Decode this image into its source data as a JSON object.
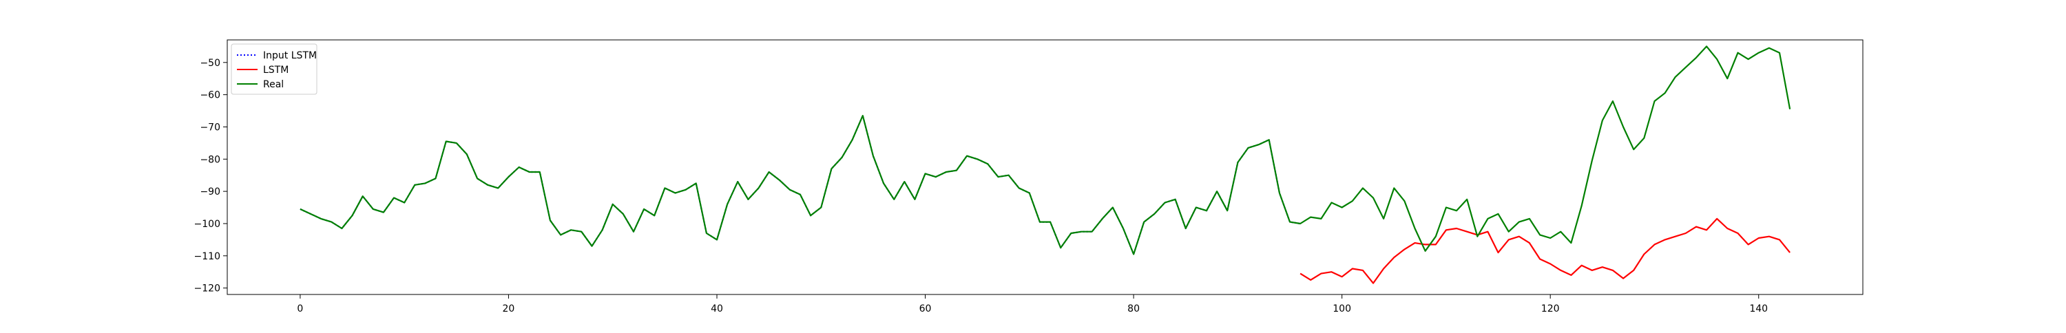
{
  "chart_data": {
    "type": "line",
    "title": "",
    "xlabel": "",
    "ylabel": "",
    "xlim": [
      -7,
      150
    ],
    "ylim": [
      -122,
      -43
    ],
    "grid": false,
    "legend_position": "top-left",
    "x_ticks": [
      0,
      20,
      40,
      60,
      80,
      100,
      120,
      140
    ],
    "x_tick_labels": [
      "0",
      "20",
      "40",
      "60",
      "80",
      "100",
      "120",
      "140"
    ],
    "y_ticks": [
      -120,
      -110,
      -100,
      -90,
      -80,
      -70,
      -60,
      -50
    ],
    "y_tick_labels": [
      "−120",
      "−110",
      "−100",
      "−90",
      "−80",
      "−70",
      "−60",
      "−50"
    ],
    "series": [
      {
        "name": "Input LSTM",
        "color": "#0000ff",
        "style": "dotted",
        "x_start": 0,
        "values": [
          -95.5,
          -97,
          -98.5,
          -99.5,
          -101.5,
          -97.5,
          -91.5,
          -95.5,
          -96.5,
          -92,
          -93.5,
          -88,
          -87.5,
          -86,
          -74.5,
          -75,
          -78.5,
          -86,
          -88,
          -89,
          -85.5,
          -82.5,
          -84,
          -84,
          -99,
          -103.5,
          -102,
          -102.5,
          -107,
          -102,
          -94,
          -97,
          -102.5,
          -95.5,
          -97.5,
          -89,
          -90.5,
          -89.5,
          -87.5,
          -103,
          -105,
          -94,
          -87,
          -92.5,
          -89,
          -84,
          -86.5,
          -89.5,
          -91,
          -97.5,
          -95,
          -83,
          -79.5,
          -74,
          -66.5,
          -79,
          -87.5,
          -92.5,
          -87,
          -92.5,
          -84.5,
          -85.5,
          -84,
          -83.5,
          -79,
          -80,
          -81.5,
          -85.5,
          -85,
          -89,
          -90.5,
          -99.5,
          -99.5,
          -107.5,
          -103,
          -102.5,
          -102.5,
          -98.5,
          -95,
          -101.5,
          -109.5,
          -99.5,
          -97,
          -93.5,
          -92.5,
          -101.5,
          -95,
          -96,
          -90,
          -96,
          -81,
          -76.5,
          -75.5,
          -74,
          -90.5,
          -99.5,
          -100
        ]
      },
      {
        "name": "LSTM",
        "color": "#ff0000",
        "style": "solid",
        "x_start": 96,
        "values": [
          -115.5,
          -117.5,
          -115.5,
          -115,
          -116.5,
          -114,
          -114.5,
          -118.5,
          -114,
          -110.5,
          -108,
          -106,
          -106.5,
          -106.5,
          -102,
          -101.5,
          -102.5,
          -103.5,
          -102.5,
          -109,
          -105,
          -104,
          -106,
          -111,
          -112.5,
          -114.5,
          -116,
          -113,
          -114.5,
          -113.5,
          -114.5,
          -117,
          -114.5,
          -109.5,
          -106.5,
          -105,
          -104,
          -103,
          -101,
          -102,
          -98.5,
          -101.5,
          -103,
          -106.5,
          -104.5,
          -104,
          -105,
          -109
        ]
      },
      {
        "name": "Real",
        "color": "#008000",
        "style": "solid",
        "x_start": 0,
        "values": [
          -95.5,
          -97,
          -98.5,
          -99.5,
          -101.5,
          -97.5,
          -91.5,
          -95.5,
          -96.5,
          -92,
          -93.5,
          -88,
          -87.5,
          -86,
          -74.5,
          -75,
          -78.5,
          -86,
          -88,
          -89,
          -85.5,
          -82.5,
          -84,
          -84,
          -99,
          -103.5,
          -102,
          -102.5,
          -107,
          -102,
          -94,
          -97,
          -102.5,
          -95.5,
          -97.5,
          -89,
          -90.5,
          -89.5,
          -87.5,
          -103,
          -105,
          -94,
          -87,
          -92.5,
          -89,
          -84,
          -86.5,
          -89.5,
          -91,
          -97.5,
          -95,
          -83,
          -79.5,
          -74,
          -66.5,
          -79,
          -87.5,
          -92.5,
          -87,
          -92.5,
          -84.5,
          -85.5,
          -84,
          -83.5,
          -79,
          -80,
          -81.5,
          -85.5,
          -85,
          -89,
          -90.5,
          -99.5,
          -99.5,
          -107.5,
          -103,
          -102.5,
          -102.5,
          -98.5,
          -95,
          -101.5,
          -109.5,
          -99.5,
          -97,
          -93.5,
          -92.5,
          -101.5,
          -95,
          -96,
          -90,
          -96,
          -81,
          -76.5,
          -75.5,
          -74,
          -90.5,
          -99.5,
          -100,
          -98,
          -98.5,
          -93.5,
          -95,
          -93,
          -89,
          -92,
          -98.5,
          -89,
          -93,
          -101.5,
          -108.5,
          -104,
          -95,
          -96,
          -92.5,
          -104,
          -98.5,
          -97,
          -102.5,
          -99.5,
          -98.5,
          -103.5,
          -104.5,
          -102.5,
          -106,
          -94.5,
          -80.5,
          -68,
          -62,
          -70,
          -77,
          -73.5,
          -62,
          -59.5,
          -54.5,
          -51.5,
          -48.5,
          -45,
          -49,
          -55,
          -47,
          -49,
          -47,
          -45.5,
          -47,
          -64.5
        ]
      }
    ]
  }
}
